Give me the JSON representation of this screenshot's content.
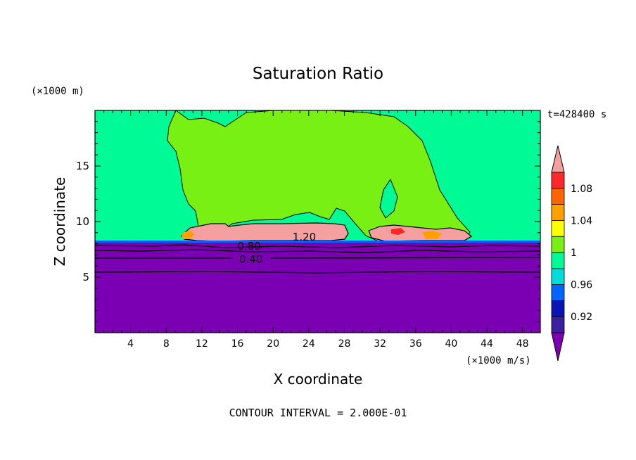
{
  "chart_data": {
    "type": "filled-contour",
    "title": "Saturation Ratio",
    "y_unit_label": "(×1000 m)",
    "x_unit_label": "(×1000 m/s)",
    "xlabel": "X coordinate",
    "ylabel": "Z coordinate",
    "time_label": "t=428400 s",
    "footer": "CONTOUR INTERVAL = 2.000E-01",
    "xlim": [
      0,
      50
    ],
    "ylim": [
      0,
      20
    ],
    "x_ticks": [
      4,
      8,
      12,
      16,
      20,
      24,
      28,
      32,
      36,
      40,
      44,
      48
    ],
    "y_ticks": [
      5,
      10,
      15
    ],
    "contour_labels": [
      {
        "text": "1.20",
        "x": 23.5,
        "y": 8.6
      },
      {
        "text": "0.80",
        "x": 17.3,
        "y": 7.8
      },
      {
        "text": "0.40",
        "x": 17.5,
        "y": 6.6
      }
    ],
    "colorbar": {
      "colors": [
        "#7b00b4",
        "#3b1fa0",
        "#0a14b4",
        "#0064ff",
        "#00dcdc",
        "#00fa96",
        "#78f014",
        "#ffff00",
        "#ffa000",
        "#ff6400",
        "#ff2828",
        "#f5a0a0"
      ],
      "tick_labels": [
        "0.92",
        "0.96",
        "1",
        "1.04",
        "1.08"
      ]
    },
    "regions": {
      "lower_layer_color": "#7b00b4",
      "upper_background_color": "#00fa96",
      "plume_color": "#78f014",
      "supersaturated_color": "#f5a0a0"
    }
  }
}
